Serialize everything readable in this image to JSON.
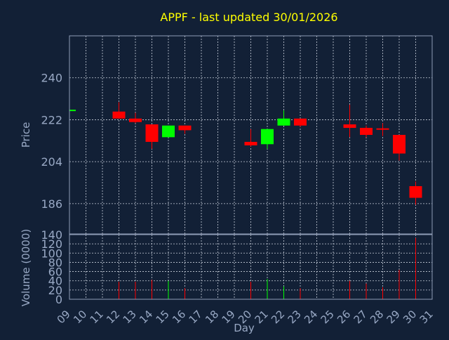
{
  "colors": {
    "background": "#122036",
    "plot_border": "#8f9cb6",
    "grid": "#c9cfdc",
    "axis_text": "#98a8c4",
    "title": "#ffff00",
    "up": "#00ff00",
    "down": "#ff0000"
  },
  "chart_data": [
    {
      "type": "candlestick",
      "title": "APPF - last updated 30/01/2026",
      "ylabel": "Price",
      "ylim": [
        173,
        258
      ],
      "yticks": [
        186,
        204,
        222,
        240
      ],
      "grid": true,
      "categories": [
        "09",
        "10",
        "11",
        "12",
        "13",
        "14",
        "15",
        "16",
        "17",
        "18",
        "19",
        "20",
        "21",
        "22",
        "23",
        "24",
        "25",
        "26",
        "27",
        "28",
        "29",
        "30",
        "31"
      ],
      "candles": [
        {
          "day": "09",
          "open": 226,
          "high": 226,
          "low": 226,
          "close": 226
        },
        {
          "day": "12",
          "open": 225.5,
          "high": 229.5,
          "low": 222.5,
          "close": 222.5
        },
        {
          "day": "13",
          "open": 222.5,
          "high": 225,
          "low": 220.5,
          "close": 221
        },
        {
          "day": "14",
          "open": 220,
          "high": 220,
          "low": 209.5,
          "close": 212.5
        },
        {
          "day": "15",
          "open": 214.5,
          "high": 219.5,
          "low": 214.5,
          "close": 219.5
        },
        {
          "day": "16",
          "open": 219.5,
          "high": 219.5,
          "low": 216,
          "close": 217.5
        },
        {
          "day": "20",
          "open": 212.5,
          "high": 218,
          "low": 210.5,
          "close": 211
        },
        {
          "day": "21",
          "open": 211.5,
          "high": 218,
          "low": 209.5,
          "close": 218
        },
        {
          "day": "22",
          "open": 219.5,
          "high": 226,
          "low": 219.5,
          "close": 222.5
        },
        {
          "day": "23",
          "open": 222.5,
          "high": 222.5,
          "low": 219,
          "close": 219.5
        },
        {
          "day": "26",
          "open": 220,
          "high": 228.5,
          "low": 214.5,
          "close": 218.5
        },
        {
          "day": "27",
          "open": 218.5,
          "high": 219.5,
          "low": 214.5,
          "close": 215.5
        },
        {
          "day": "28",
          "open": 218,
          "high": 220.5,
          "low": 215,
          "close": 217.5
        },
        {
          "day": "29",
          "open": 215.5,
          "high": 215.5,
          "low": 204.5,
          "close": 207.5
        },
        {
          "day": "30",
          "open": 193.5,
          "high": 195.5,
          "low": 185.5,
          "close": 188.5
        }
      ]
    },
    {
      "type": "bar",
      "ylabel": "Volume (0000)",
      "xlabel": "Day",
      "ylim": [
        0,
        140
      ],
      "yticks": [
        0,
        20,
        40,
        60,
        80,
        100,
        120,
        140
      ],
      "grid": true,
      "categories": [
        "09",
        "10",
        "11",
        "12",
        "13",
        "14",
        "15",
        "16",
        "17",
        "18",
        "19",
        "20",
        "21",
        "22",
        "23",
        "24",
        "25",
        "26",
        "27",
        "28",
        "29",
        "30",
        "31"
      ],
      "bars": [
        {
          "day": "12",
          "value": 38,
          "direction": "down"
        },
        {
          "day": "13",
          "value": 38,
          "direction": "down"
        },
        {
          "day": "14",
          "value": 42,
          "direction": "down"
        },
        {
          "day": "15",
          "value": 40,
          "direction": "up"
        },
        {
          "day": "16",
          "value": 24,
          "direction": "down"
        },
        {
          "day": "20",
          "value": 38,
          "direction": "down"
        },
        {
          "day": "21",
          "value": 44,
          "direction": "up"
        },
        {
          "day": "22",
          "value": 28,
          "direction": "up"
        },
        {
          "day": "23",
          "value": 24,
          "direction": "down"
        },
        {
          "day": "26",
          "value": 40,
          "direction": "down"
        },
        {
          "day": "27",
          "value": 34,
          "direction": "down"
        },
        {
          "day": "28",
          "value": 26,
          "direction": "down"
        },
        {
          "day": "29",
          "value": 64,
          "direction": "down"
        },
        {
          "day": "30",
          "value": 133,
          "direction": "down"
        }
      ]
    }
  ]
}
